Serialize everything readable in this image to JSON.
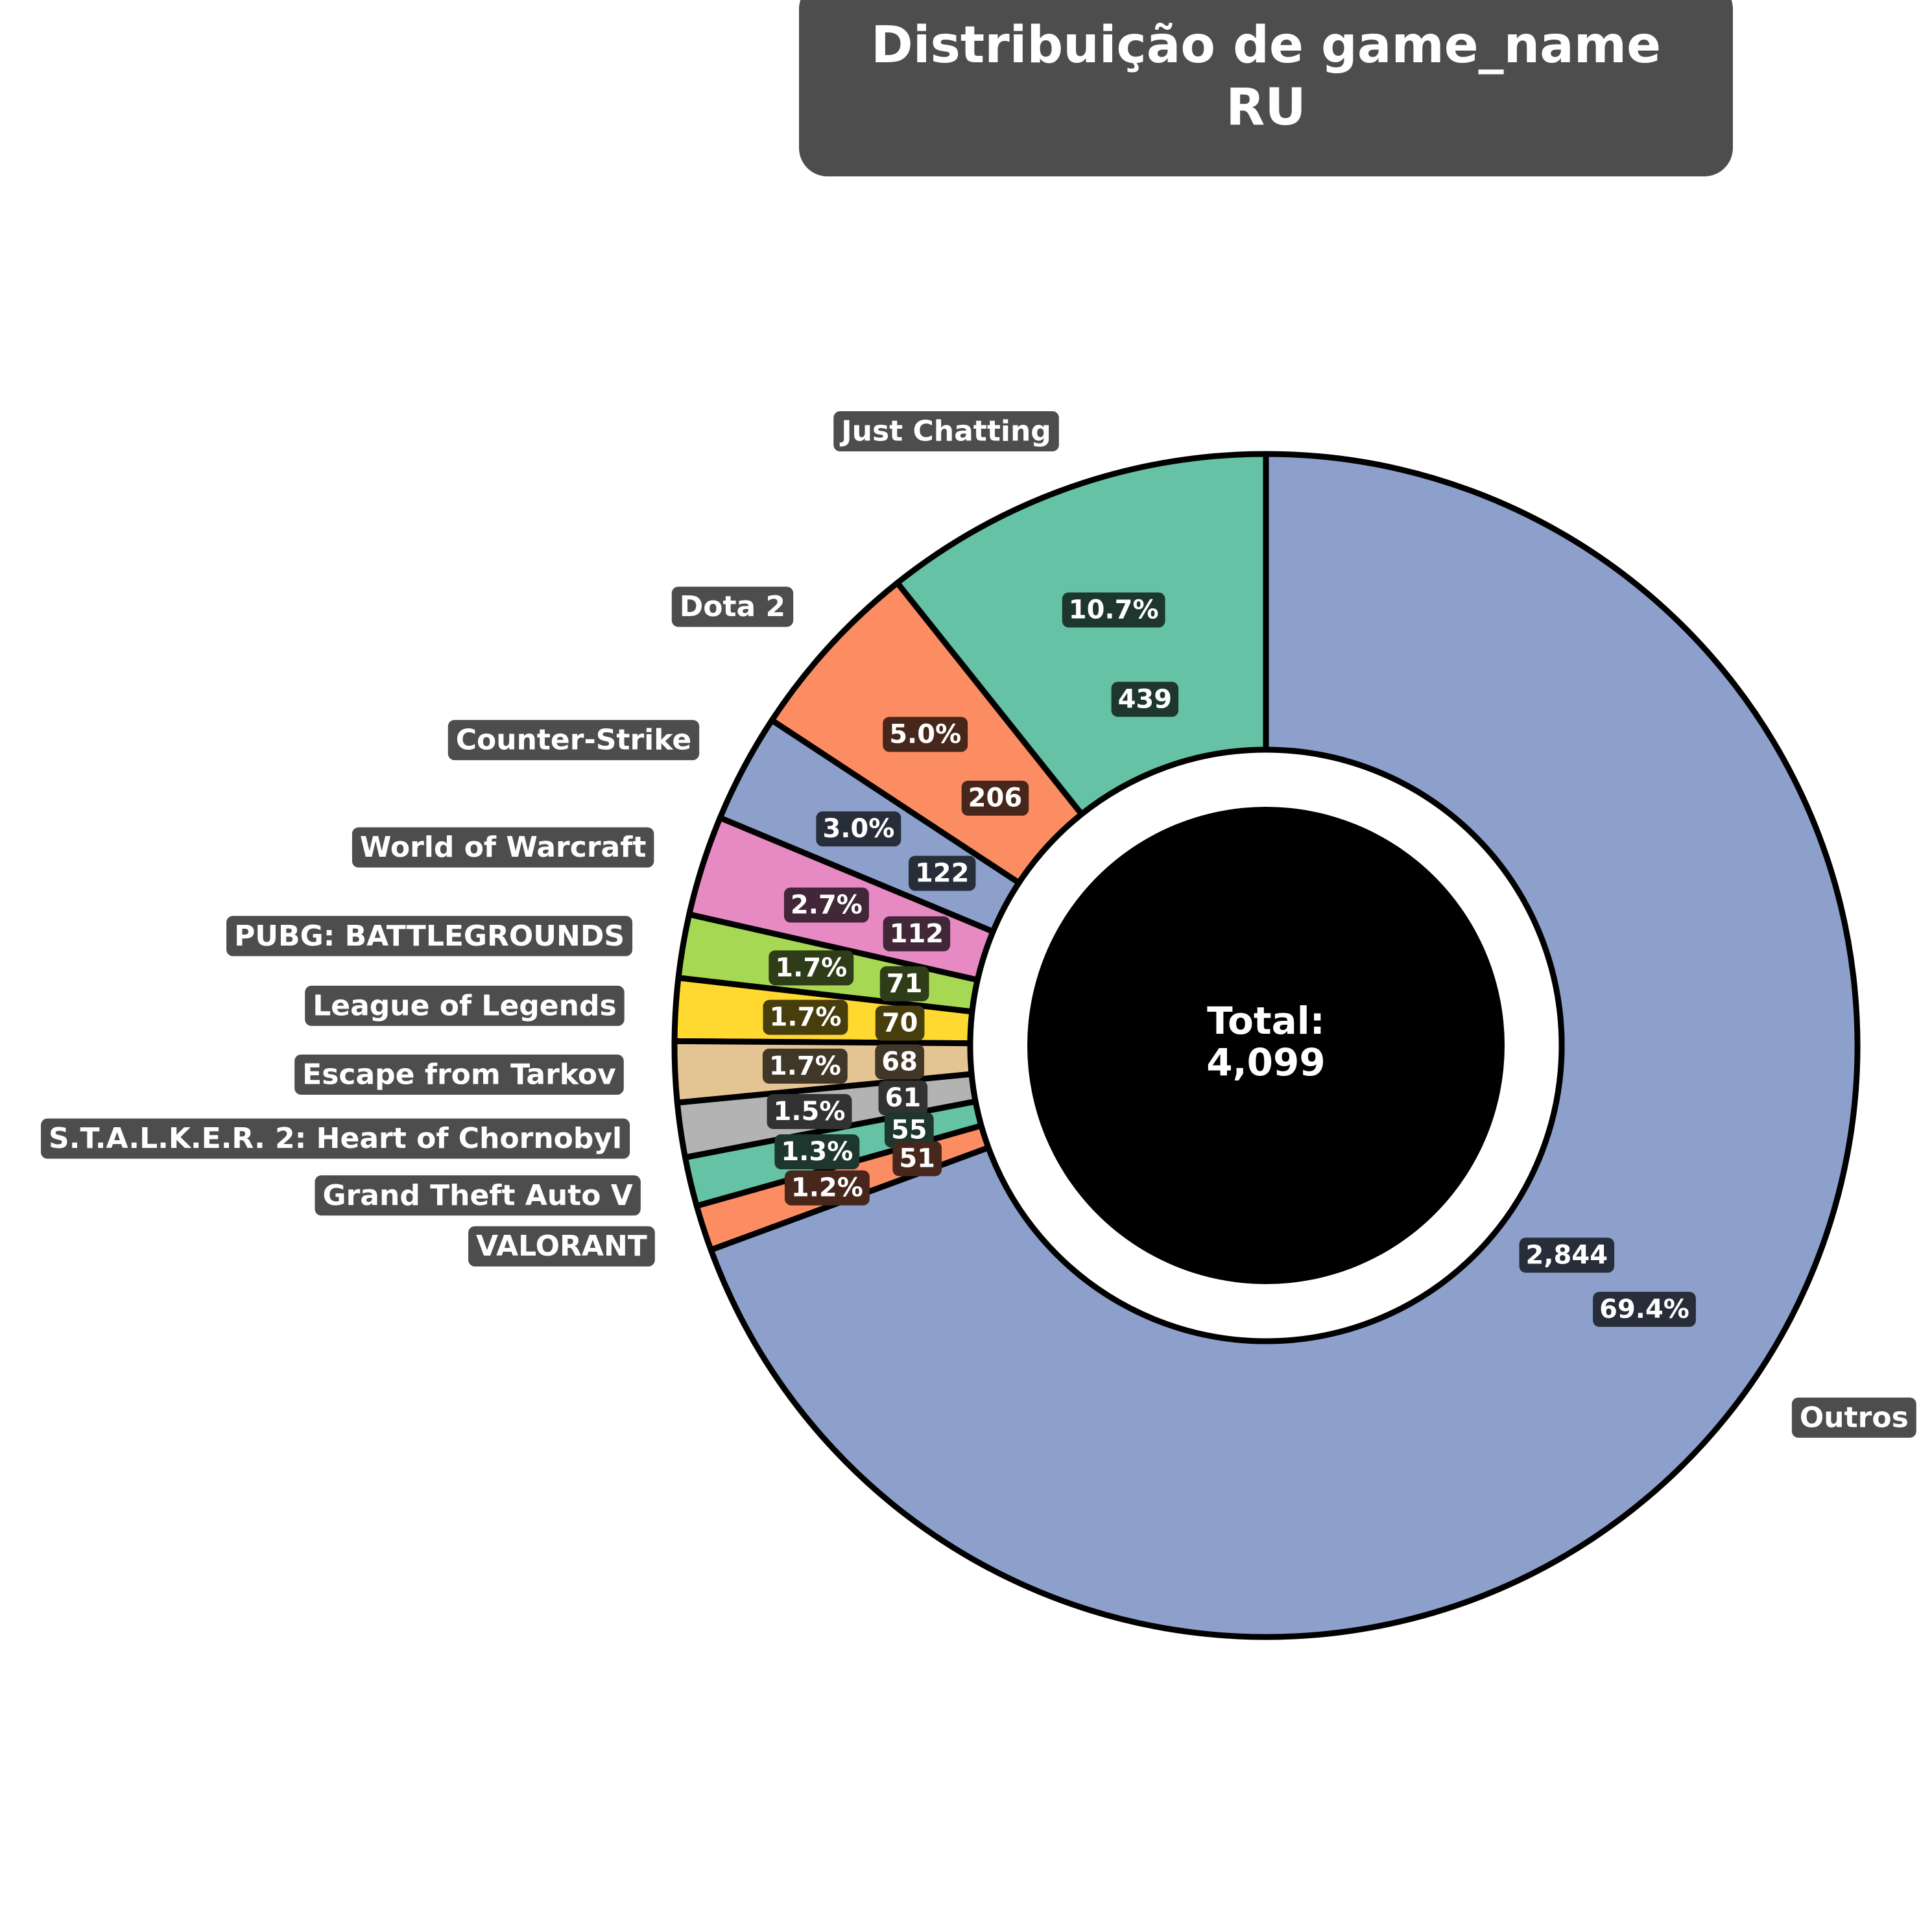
{
  "chart_data": {
    "type": "pie",
    "title": "Distribuição de game_name\nRU",
    "center_label": "Total:",
    "center_value": "4,099",
    "start_angle_deg": 90,
    "direction": "counterclockwise",
    "slices": [
      {
        "label": "Just Chatting",
        "value": 439,
        "value_text": "439",
        "pct_text": "10.7%",
        "color": "#66c2a5"
      },
      {
        "label": "Dota 2",
        "value": 206,
        "value_text": "206",
        "pct_text": "5.0%",
        "color": "#fc8d62"
      },
      {
        "label": "Counter-Strike",
        "value": 122,
        "value_text": "122",
        "pct_text": "3.0%",
        "color": "#8da0cb"
      },
      {
        "label": "World of Warcraft",
        "value": 112,
        "value_text": "112",
        "pct_text": "2.7%",
        "color": "#e78ac3"
      },
      {
        "label": "PUBG: BATTLEGROUNDS",
        "value": 71,
        "value_text": "71",
        "pct_text": "1.7%",
        "color": "#a6d854"
      },
      {
        "label": "League of Legends",
        "value": 70,
        "value_text": "70",
        "pct_text": "1.7%",
        "color": "#ffd92f"
      },
      {
        "label": "Escape from Tarkov",
        "value": 68,
        "value_text": "68",
        "pct_text": "1.7%",
        "color": "#e5c494"
      },
      {
        "label": "S.T.A.L.K.E.R. 2: Heart of Chornobyl",
        "value": 61,
        "value_text": "61",
        "pct_text": "1.5%",
        "color": "#b3b3b3"
      },
      {
        "label": "Grand Theft Auto V",
        "value": 55,
        "value_text": "55",
        "pct_text": "1.3%",
        "color": "#66c2a5"
      },
      {
        "label": "VALORANT",
        "value": 51,
        "value_text": "51",
        "pct_text": "1.2%",
        "color": "#fc8d62"
      },
      {
        "label": "Outros",
        "value": 2844,
        "value_text": "2,844",
        "pct_text": "69.4%",
        "color": "#8da0cb"
      }
    ]
  }
}
